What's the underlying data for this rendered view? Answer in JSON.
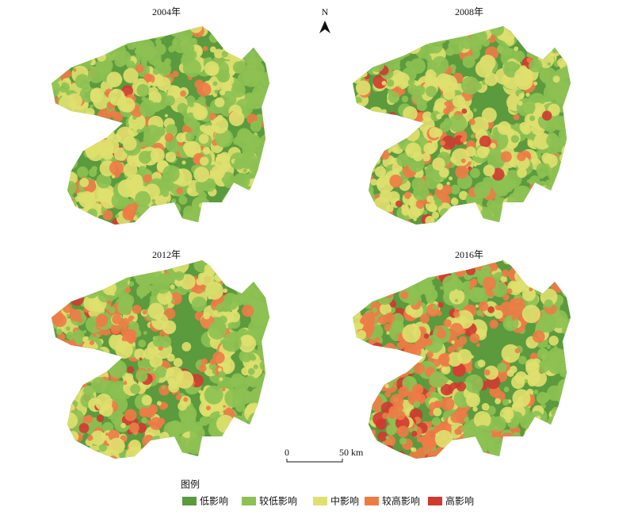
{
  "panels": [
    {
      "title": "2004年"
    },
    {
      "title": "2008年"
    },
    {
      "title": "2012年"
    },
    {
      "title": "2016年"
    }
  ],
  "north": "N",
  "scale": {
    "start": "0",
    "end": "50 km"
  },
  "legend": {
    "title": "图例",
    "items": [
      {
        "label": "低影响",
        "color": "#5b9a3d"
      },
      {
        "label": "较低影响",
        "color": "#8dc152"
      },
      {
        "label": "中影响",
        "color": "#dfe06e"
      },
      {
        "label": "较高影响",
        "color": "#ee7b46"
      },
      {
        "label": "高影响",
        "color": "#cf3a30"
      }
    ]
  }
}
